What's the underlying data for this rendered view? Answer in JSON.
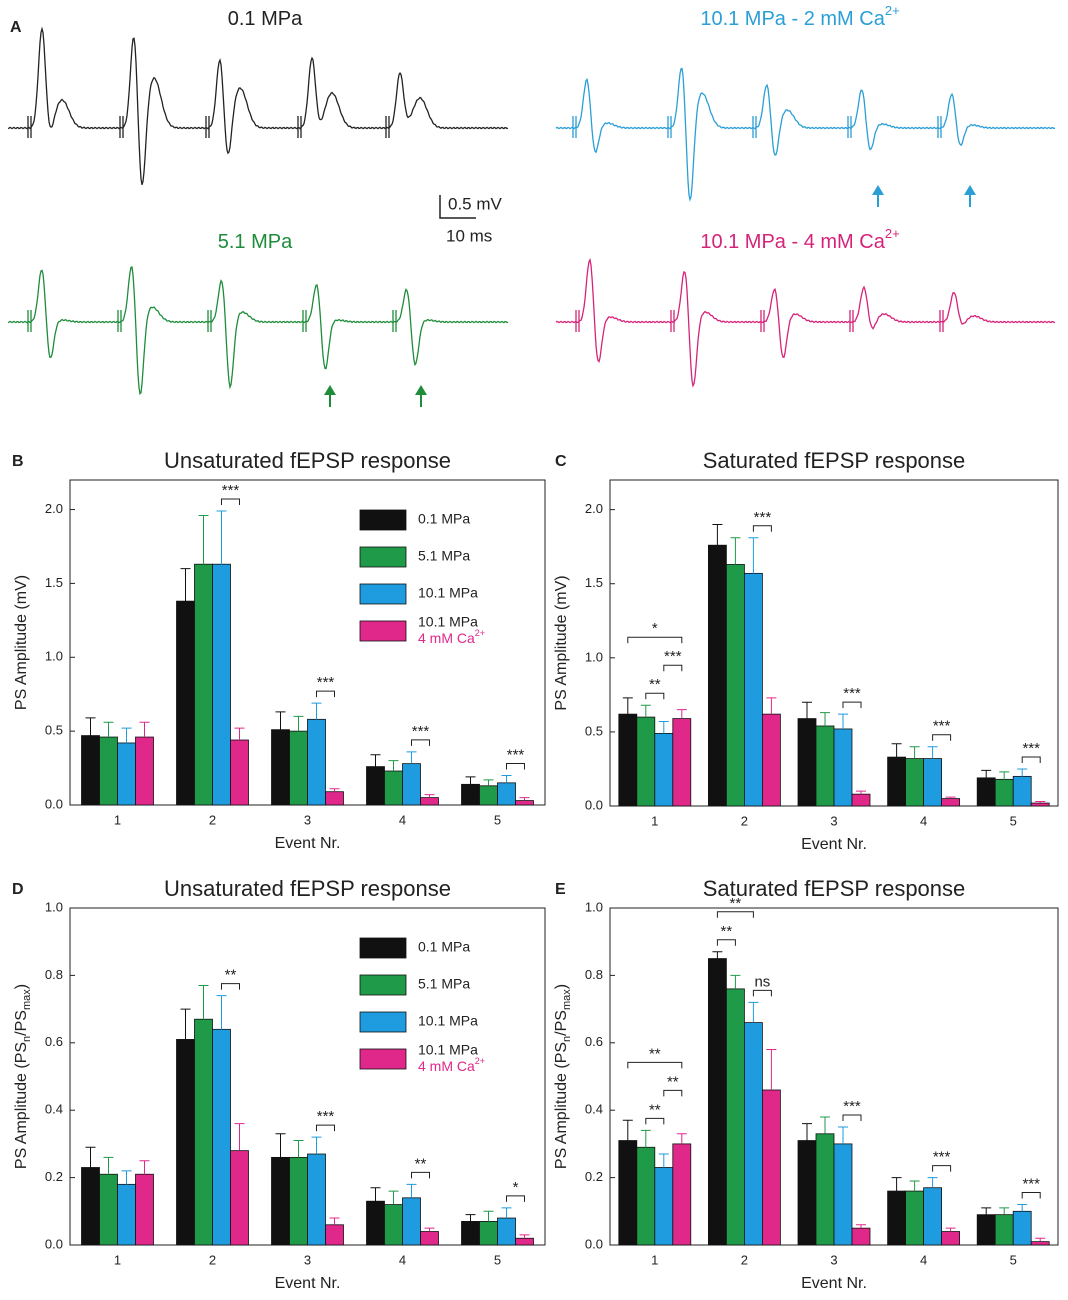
{
  "panel_a": {
    "panel": "A",
    "traces": [
      {
        "label": "0.1 MPa",
        "color": "#222222"
      },
      {
        "label": "10.1 MPa - 2 mM Ca",
        "sup": "2+",
        "color": "#2a9fd6"
      },
      {
        "label": "5.1 MPa",
        "color": "#1e8c3a"
      },
      {
        "label": "10.1 MPa - 4 mM Ca",
        "sup": "2+",
        "color": "#d6237a"
      }
    ],
    "scale_v": "0.5 mV",
    "scale_t": "10 ms"
  },
  "chart_data": [
    {
      "type": "bar",
      "panel": "B",
      "title": "Unsaturated fEPSP response",
      "xlabel": "Event Nr.",
      "ylabel": [
        {
          "text": "PS Amplitude (mV)"
        }
      ],
      "categories": [
        "1",
        "2",
        "3",
        "4",
        "5"
      ],
      "ylim": [
        0,
        2.2
      ],
      "yticks": [
        {
          "value": 0,
          "label": "0.0"
        },
        {
          "value": 0.5,
          "label": "0.5"
        },
        {
          "value": 1,
          "label": "1.0"
        },
        {
          "value": 1.5,
          "label": "1.5"
        },
        {
          "value": 2,
          "label": "2.0"
        }
      ],
      "series": [
        {
          "name": "0.1 MPa",
          "color": "#111111",
          "values": [
            0.47,
            1.38,
            0.51,
            0.26,
            0.14
          ],
          "errors": [
            0.12,
            0.22,
            0.12,
            0.08,
            0.05
          ]
        },
        {
          "name": "5.1 MPa",
          "color": "#1f9a48",
          "values": [
            0.46,
            1.63,
            0.5,
            0.23,
            0.13
          ],
          "errors": [
            0.1,
            0.33,
            0.1,
            0.07,
            0.04
          ]
        },
        {
          "name": "10.1 MPa",
          "color": "#1f9bdf",
          "values": [
            0.42,
            1.63,
            0.58,
            0.28,
            0.15
          ],
          "errors": [
            0.1,
            0.36,
            0.11,
            0.08,
            0.05
          ]
        },
        {
          "name": "10.1 MPa",
          "name_line2": "4 mM Ca",
          "name_sup": "2+",
          "color": "#e0288a",
          "values": [
            0.46,
            0.44,
            0.09,
            0.05,
            0.03
          ],
          "errors": [
            0.1,
            0.08,
            0.02,
            0.02,
            0.02
          ]
        }
      ],
      "significance": [
        {
          "category": 1,
          "series": [
            2,
            3
          ],
          "label": "***"
        },
        {
          "category": 2,
          "series": [
            2,
            3
          ],
          "label": "***"
        },
        {
          "category": 3,
          "series": [
            2,
            3
          ],
          "label": "***"
        },
        {
          "category": 4,
          "series": [
            2,
            3
          ],
          "label": "***"
        }
      ]
    },
    {
      "type": "bar",
      "panel": "C",
      "title": "Saturated fEPSP response",
      "xlabel": "Event Nr.",
      "ylabel": [
        {
          "text": "PS Amplitude (mV)"
        }
      ],
      "categories": [
        "1",
        "2",
        "3",
        "4",
        "5"
      ],
      "ylim": [
        0,
        2.2
      ],
      "yticks": [
        {
          "value": 0,
          "label": "0.0"
        },
        {
          "value": 0.5,
          "label": "0.5"
        },
        {
          "value": 1,
          "label": "1.0"
        },
        {
          "value": 1.5,
          "label": "1.5"
        },
        {
          "value": 2,
          "label": "2.0"
        }
      ],
      "series": [
        {
          "color": "#111111",
          "values": [
            0.62,
            1.76,
            0.59,
            0.33,
            0.19
          ],
          "errors": [
            0.11,
            0.14,
            0.11,
            0.09,
            0.05
          ]
        },
        {
          "color": "#1f9a48",
          "values": [
            0.6,
            1.63,
            0.54,
            0.32,
            0.18
          ],
          "errors": [
            0.08,
            0.18,
            0.09,
            0.08,
            0.05
          ]
        },
        {
          "color": "#1f9bdf",
          "values": [
            0.49,
            1.57,
            0.52,
            0.32,
            0.2
          ],
          "errors": [
            0.08,
            0.24,
            0.1,
            0.08,
            0.05
          ]
        },
        {
          "color": "#e0288a",
          "values": [
            0.59,
            0.62,
            0.08,
            0.05,
            0.02
          ],
          "errors": [
            0.06,
            0.11,
            0.02,
            0.01,
            0.01
          ]
        }
      ],
      "significance": [
        {
          "category": 0,
          "series": [
            1,
            2
          ],
          "label": "**"
        },
        {
          "category": 0,
          "series": [
            2,
            3
          ],
          "label": "***"
        },
        {
          "category": 0,
          "series": [
            0,
            3
          ],
          "label": "*"
        },
        {
          "category": 1,
          "series": [
            2,
            3
          ],
          "label": "***"
        },
        {
          "category": 2,
          "series": [
            2,
            3
          ],
          "label": "***"
        },
        {
          "category": 3,
          "series": [
            2,
            3
          ],
          "label": "***"
        },
        {
          "category": 4,
          "series": [
            2,
            3
          ],
          "label": "***"
        }
      ]
    },
    {
      "type": "bar",
      "panel": "D",
      "title": "Unsaturated fEPSP response",
      "xlabel": "Event Nr.",
      "ylabel": [
        {
          "text": "PS Amplitude (PS"
        },
        {
          "text": "n",
          "sub": true
        },
        {
          "text": "/PS"
        },
        {
          "text": "max",
          "sub": true
        },
        {
          "text": ")"
        }
      ],
      "categories": [
        "1",
        "2",
        "3",
        "4",
        "5"
      ],
      "ylim": [
        0,
        1
      ],
      "yticks": [
        {
          "value": 0,
          "label": "0.0"
        },
        {
          "value": 0.2,
          "label": "0.2"
        },
        {
          "value": 0.4,
          "label": "0.4"
        },
        {
          "value": 0.6,
          "label": "0.6"
        },
        {
          "value": 0.8,
          "label": "0.8"
        },
        {
          "value": 1,
          "label": "1.0"
        }
      ],
      "series": [
        {
          "name": "0.1 MPa",
          "color": "#111111",
          "values": [
            0.23,
            0.61,
            0.26,
            0.13,
            0.07
          ],
          "errors": [
            0.06,
            0.09,
            0.07,
            0.04,
            0.02
          ]
        },
        {
          "name": "5.1 MPa",
          "color": "#1f9a48",
          "values": [
            0.21,
            0.67,
            0.26,
            0.12,
            0.07
          ],
          "errors": [
            0.05,
            0.1,
            0.05,
            0.04,
            0.03
          ]
        },
        {
          "name": "10.1 MPa",
          "color": "#1f9bdf",
          "values": [
            0.18,
            0.64,
            0.27,
            0.14,
            0.08
          ],
          "errors": [
            0.04,
            0.1,
            0.05,
            0.04,
            0.03
          ]
        },
        {
          "name": "10.1 MPa",
          "name_line2": "4 mM Ca",
          "name_sup": "2+",
          "color": "#e0288a",
          "values": [
            0.21,
            0.28,
            0.06,
            0.04,
            0.02
          ],
          "errors": [
            0.04,
            0.08,
            0.02,
            0.01,
            0.01
          ]
        }
      ],
      "significance": [
        {
          "category": 1,
          "series": [
            2,
            3
          ],
          "label": "**"
        },
        {
          "category": 2,
          "series": [
            2,
            3
          ],
          "label": "***"
        },
        {
          "category": 3,
          "series": [
            2,
            3
          ],
          "label": "**"
        },
        {
          "category": 4,
          "series": [
            2,
            3
          ],
          "label": "*"
        }
      ]
    },
    {
      "type": "bar",
      "panel": "E",
      "title": "Saturated fEPSP response",
      "xlabel": "Event Nr.",
      "ylabel": [
        {
          "text": "PS Amplitude (PS"
        },
        {
          "text": "n",
          "sub": true
        },
        {
          "text": "/PS"
        },
        {
          "text": "max",
          "sub": true
        },
        {
          "text": ")"
        }
      ],
      "categories": [
        "1",
        "2",
        "3",
        "4",
        "5"
      ],
      "ylim": [
        0,
        1
      ],
      "yticks": [
        {
          "value": 0,
          "label": "0.0"
        },
        {
          "value": 0.2,
          "label": "0.2"
        },
        {
          "value": 0.4,
          "label": "0.4"
        },
        {
          "value": 0.6,
          "label": "0.6"
        },
        {
          "value": 0.8,
          "label": "0.8"
        },
        {
          "value": 1,
          "label": "1.0"
        }
      ],
      "series": [
        {
          "color": "#111111",
          "values": [
            0.31,
            0.85,
            0.31,
            0.16,
            0.09
          ],
          "errors": [
            0.06,
            0.02,
            0.05,
            0.04,
            0.02
          ]
        },
        {
          "color": "#1f9a48",
          "values": [
            0.29,
            0.76,
            0.33,
            0.16,
            0.09
          ],
          "errors": [
            0.05,
            0.04,
            0.05,
            0.03,
            0.02
          ]
        },
        {
          "color": "#1f9bdf",
          "values": [
            0.23,
            0.66,
            0.3,
            0.17,
            0.1
          ],
          "errors": [
            0.04,
            0.06,
            0.05,
            0.03,
            0.02
          ]
        },
        {
          "color": "#e0288a",
          "values": [
            0.3,
            0.46,
            0.05,
            0.04,
            0.01
          ],
          "errors": [
            0.03,
            0.12,
            0.01,
            0.01,
            0.01
          ]
        }
      ],
      "significance": [
        {
          "category": 0,
          "series": [
            1,
            2
          ],
          "label": "**"
        },
        {
          "category": 0,
          "series": [
            2,
            3
          ],
          "label": "**"
        },
        {
          "category": 0,
          "series": [
            0,
            3
          ],
          "label": "**"
        },
        {
          "category": 1,
          "series": [
            0,
            1
          ],
          "label": "**"
        },
        {
          "category": 1,
          "series": [
            0,
            2
          ],
          "label": "**"
        },
        {
          "category": 1,
          "series": [
            2,
            3
          ],
          "label": "ns"
        },
        {
          "category": 2,
          "series": [
            2,
            3
          ],
          "label": "***"
        },
        {
          "category": 3,
          "series": [
            2,
            3
          ],
          "label": "***"
        },
        {
          "category": 4,
          "series": [
            2,
            3
          ],
          "label": "***"
        }
      ]
    }
  ]
}
